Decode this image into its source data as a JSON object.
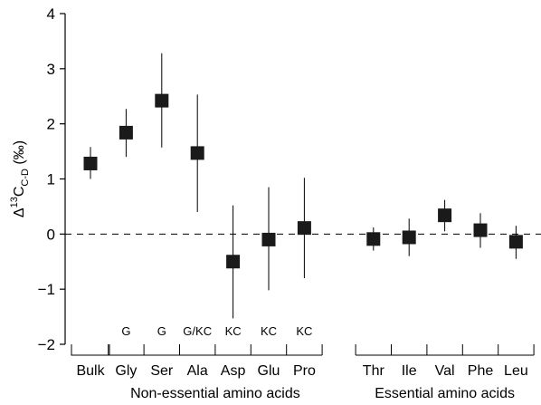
{
  "chart_data": {
    "type": "scatter",
    "ylabel": {
      "prefix": "Δ",
      "sup": "13",
      "base": "C",
      "sub": "C-D",
      "unit": " (‰)"
    },
    "ylim": [
      -2,
      4
    ],
    "yticks": [
      -2,
      -1,
      0,
      1,
      2,
      3,
      4
    ],
    "ytick_labels": [
      "−2",
      "−1",
      "0",
      "1",
      "2",
      "3",
      "4"
    ],
    "reference_line": {
      "y": 0,
      "style": "dashed"
    },
    "categories": [
      "Bulk",
      "Gly",
      "Ser",
      "Ala",
      "Asp",
      "Glu",
      "Pro",
      "Thr",
      "Ile",
      "Val",
      "Phe",
      "Leu"
    ],
    "values": [
      1.28,
      1.84,
      2.42,
      1.47,
      -0.5,
      -0.1,
      0.11,
      -0.09,
      -0.06,
      0.34,
      0.07,
      -0.14
    ],
    "error_low": [
      1.0,
      1.4,
      1.57,
      0.4,
      -1.53,
      -1.02,
      -0.8,
      -0.3,
      -0.4,
      0.05,
      -0.25,
      -0.45
    ],
    "error_high": [
      1.58,
      2.27,
      3.28,
      2.53,
      0.52,
      0.85,
      1.02,
      0.12,
      0.28,
      0.62,
      0.38,
      0.15
    ],
    "annotations": [
      "",
      "G",
      "G",
      "G/KC",
      "KC",
      "KC",
      "KC",
      "",
      "",
      "",
      "",
      ""
    ],
    "groups": [
      {
        "label": "",
        "members": [
          "Bulk"
        ]
      },
      {
        "label": "Non-essential amino acids",
        "members": [
          "Gly",
          "Ser",
          "Ala",
          "Asp",
          "Glu",
          "Pro"
        ]
      },
      {
        "label": "Essential amino acids",
        "members": [
          "Thr",
          "Ile",
          "Val",
          "Phe",
          "Leu"
        ]
      }
    ],
    "marker": "square",
    "marker_color": "#1a1a1a",
    "grid": false
  }
}
